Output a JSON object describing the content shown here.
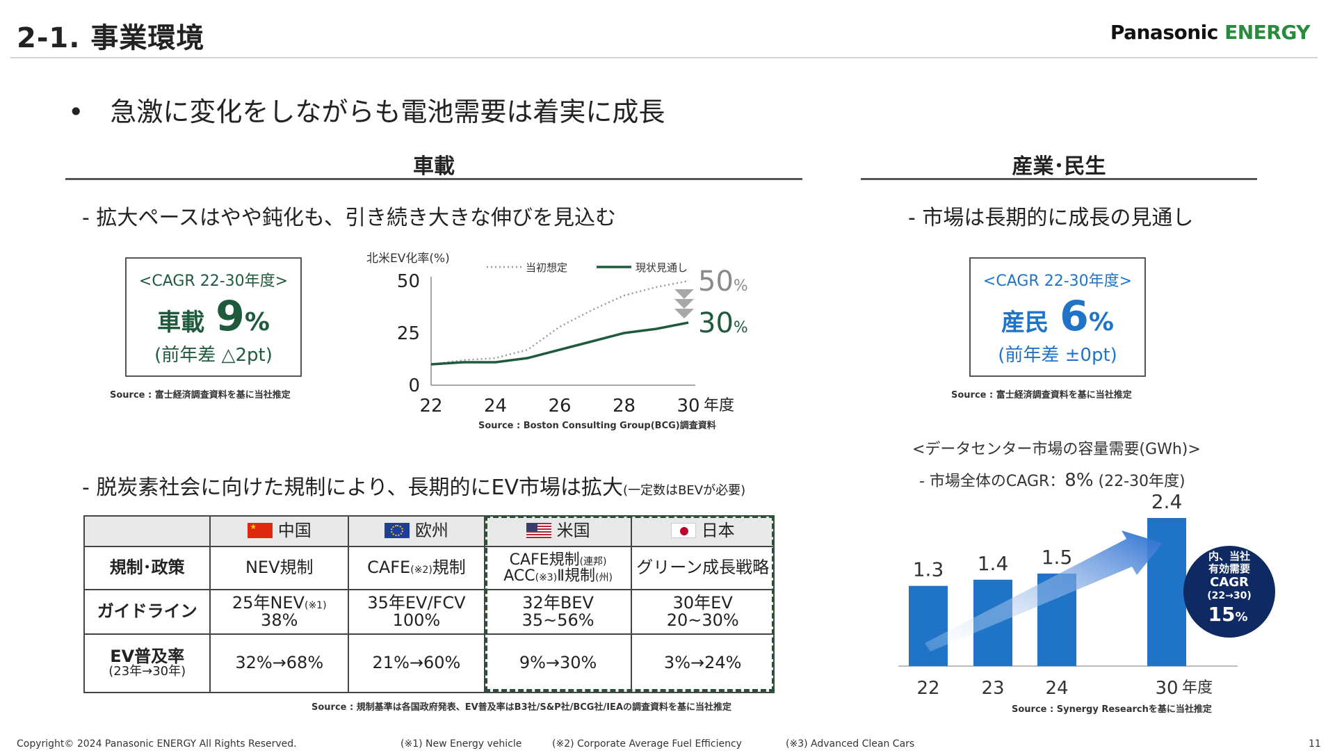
{
  "header": {
    "title": "2-1. 事業環境",
    "logo_panasonic": "Panasonic",
    "logo_energy": "ENERGY"
  },
  "bullet": {
    "marker": "•",
    "text": "急激に変化をしながらも電池需要は着実に成長"
  },
  "auto": {
    "section": "車載",
    "subhead1": "- 拡大ペースはやや鈍化も、引き続き大きな伸びを見込む",
    "cagr": {
      "caption": "<CAGR 22-30年度>",
      "label": "車載",
      "value": "9",
      "unit": "%",
      "diff": "(前年差 △2pt)"
    },
    "source_cagr": "Source : 富士経済調査資料を基に当社推定",
    "subhead2": "- 脱炭素社会に向けた規制により、長期的にEV市場は拡大",
    "subhead2_note": "(一定数はBEVが必要)"
  },
  "chart_data": [
    {
      "type": "line",
      "ylabel": "北米EV化率(%)",
      "x": [
        22,
        23,
        24,
        25,
        26,
        27,
        28,
        29,
        30
      ],
      "x_ticks": [
        "22",
        "24",
        "26",
        "28",
        "30"
      ],
      "x_unit": "年度",
      "y_ticks": [
        "0",
        "25",
        "50"
      ],
      "ylim": [
        0,
        50
      ],
      "series": [
        {
          "name": "当初想定",
          "style": "dotted",
          "color": "#9a9a9a",
          "values": [
            10,
            12,
            13,
            17,
            28,
            36,
            43,
            47,
            50
          ]
        },
        {
          "name": "現状見通し",
          "style": "solid",
          "color": "#1f5a3d",
          "values": [
            10,
            11,
            11,
            13,
            17,
            21,
            25,
            27,
            30
          ]
        }
      ],
      "end_label_initial_value": "50",
      "end_label_current_value": "30",
      "end_label_unit": "%",
      "source": "Source : Boston Consulting Group(BCG)調査資料"
    },
    {
      "type": "bar",
      "title": "<データセンター市場の容量需要(GWh)>",
      "subtitle_prefix": "- 市場全体のCAGR：",
      "subtitle_value": "8%",
      "subtitle_suffix": "(22-30年度)",
      "categories": [
        "22",
        "23",
        "24",
        "30"
      ],
      "values": [
        1.3,
        1.4,
        1.5,
        2.4
      ],
      "value_labels": [
        "1.3",
        "1.4",
        "1.5",
        "2.4"
      ],
      "x_unit": "年度",
      "ylim": [
        0,
        2.4
      ],
      "bar_color": "#1f74c8",
      "badge": {
        "line1": "内、当社",
        "line2": "有効需要",
        "line3": "CAGR",
        "line4": "(22→30)",
        "value": "15",
        "unit": "%",
        "color": "#0f2a63"
      },
      "source": "Source : Synergy Researchを基に当社推定"
    }
  ],
  "industrial": {
    "section": "産業･民生",
    "subhead": "- 市場は長期的に成長の見通し",
    "cagr": {
      "caption": "<CAGR 22-30年度>",
      "label": "産民",
      "value": "6",
      "unit": "%",
      "diff": "(前年差 ±0pt)"
    },
    "source_cagr": "Source : 富士経済調査資料を基に当社推定"
  },
  "regulation_table": {
    "columns": [
      {
        "label": "中国",
        "flag": "china"
      },
      {
        "label": "欧州",
        "flag": "eu"
      },
      {
        "label": "米国",
        "flag": "us"
      },
      {
        "label": "日本",
        "flag": "japan"
      }
    ],
    "rows": [
      {
        "header": "規制･政策",
        "cells": [
          {
            "main": "NEV規制"
          },
          {
            "main": "CAFE",
            "sup": "(※2)",
            "tail": "規制"
          },
          {
            "line1": "CAFE規制",
            "line1_note": "(連邦)",
            "line2": "ACC",
            "line2_sup": "(※3)",
            "line2_tail": "Ⅱ規制",
            "line2_note": "(州)"
          },
          {
            "main": "グリーン成長戦略"
          }
        ]
      },
      {
        "header": "ガイドライン",
        "cells": [
          {
            "line1": "25年NEV",
            "line1_sup": "(※1)",
            "line2": "38%"
          },
          {
            "line1": "35年EV/FCV",
            "line2": "100%"
          },
          {
            "line1": "32年BEV",
            "line2": "35~56%"
          },
          {
            "line1": "30年EV",
            "line2": "20~30%"
          }
        ]
      },
      {
        "header": "EV普及率",
        "header_sub": "(23年→30年)",
        "cells": [
          {
            "main": "32%→68%"
          },
          {
            "main": "21%→60%"
          },
          {
            "main": "9%→30%"
          },
          {
            "main": "3%→24%"
          }
        ]
      }
    ],
    "source": "Source : 規制基準は各国政府発表、EV普及率はB3社/S&P社/BCG社/IEAの調査資料を基に当社推定"
  },
  "footer": {
    "copyright": "Copyright© 2024 Panasonic ENERGY All Rights Reserved.",
    "note1": "(※1) New Energy vehicle",
    "note2": "(※2) Corporate Average Fuel Efficiency",
    "note3": "(※3) Advanced Clean Cars",
    "page": "11"
  }
}
